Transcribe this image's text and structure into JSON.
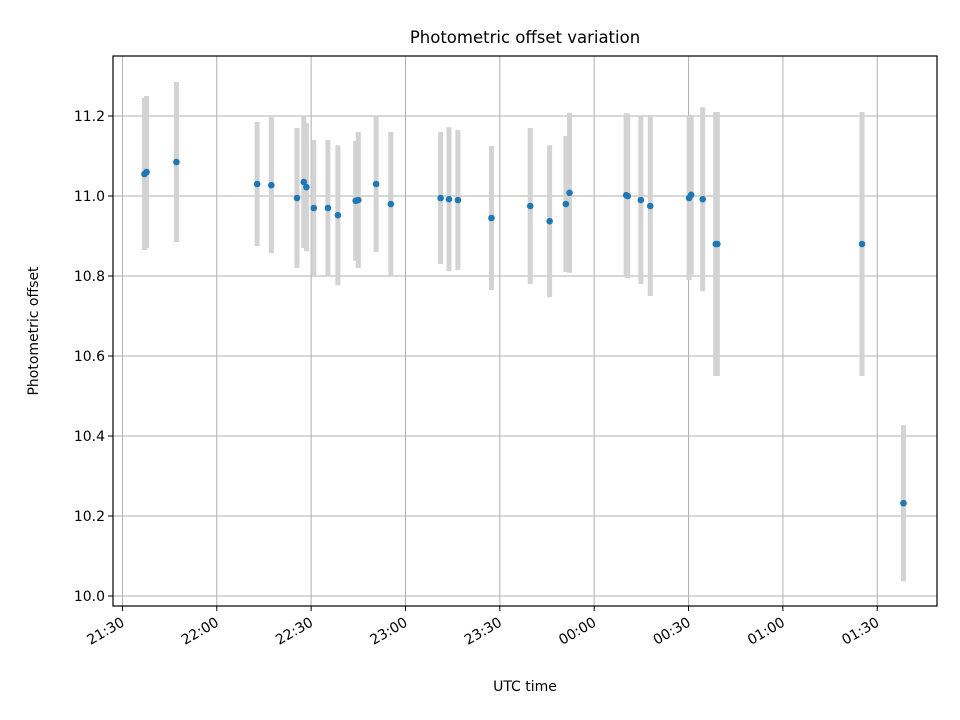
{
  "chart_data": {
    "type": "scatter",
    "title": "Photometric offset variation",
    "xlabel": "UTC time",
    "ylabel": "Photometric offset",
    "xlim": [
      "21:27",
      "01:49"
    ],
    "ylim": [
      9.975,
      11.35
    ],
    "x_ticks": [
      "21:30",
      "22:00",
      "22:30",
      "23:00",
      "23:30",
      "00:00",
      "00:30",
      "01:00",
      "01:30"
    ],
    "y_ticks": [
      "10.0",
      "10.2",
      "10.4",
      "10.6",
      "10.8",
      "11.0",
      "11.2"
    ],
    "grid": true,
    "point_color": "#1f77b4",
    "errorbar_color": "#d3d3d3",
    "points": [
      {
        "t": "21:37:00",
        "y": 11.055,
        "err": 0.19
      },
      {
        "t": "21:37:40",
        "y": 11.06,
        "err": 0.19
      },
      {
        "t": "21:47:10",
        "y": 11.085,
        "err": 0.2
      },
      {
        "t": "22:12:50",
        "y": 11.03,
        "err": 0.155
      },
      {
        "t": "22:17:20",
        "y": 11.027,
        "err": 0.17
      },
      {
        "t": "22:25:30",
        "y": 10.995,
        "err": 0.175
      },
      {
        "t": "22:27:40",
        "y": 11.035,
        "err": 0.165
      },
      {
        "t": "22:28:30",
        "y": 11.022,
        "err": 0.16
      },
      {
        "t": "22:30:50",
        "y": 10.97,
        "err": 0.17
      },
      {
        "t": "22:35:20",
        "y": 10.97,
        "err": 0.17
      },
      {
        "t": "22:38:30",
        "y": 10.952,
        "err": 0.175
      },
      {
        "t": "22:44:10",
        "y": 10.988,
        "err": 0.15
      },
      {
        "t": "22:45:00",
        "y": 10.99,
        "err": 0.17
      },
      {
        "t": "22:50:40",
        "y": 11.03,
        "err": 0.17
      },
      {
        "t": "22:55:20",
        "y": 10.98,
        "err": 0.18
      },
      {
        "t": "23:11:10",
        "y": 10.995,
        "err": 0.165
      },
      {
        "t": "23:13:50",
        "y": 10.992,
        "err": 0.18
      },
      {
        "t": "23:16:40",
        "y": 10.99,
        "err": 0.175
      },
      {
        "t": "23:27:20",
        "y": 10.945,
        "err": 0.18
      },
      {
        "t": "23:39:40",
        "y": 10.975,
        "err": 0.195
      },
      {
        "t": "23:45:50",
        "y": 10.937,
        "err": 0.19
      },
      {
        "t": "23:51:00",
        "y": 10.98,
        "err": 0.17
      },
      {
        "t": "23:52:10",
        "y": 11.008,
        "err": 0.2
      },
      {
        "t": "00:10:10",
        "y": 11.002,
        "err": 0.205
      },
      {
        "t": "00:10:40",
        "y": 11.0,
        "err": 0.205
      },
      {
        "t": "00:14:50",
        "y": 10.99,
        "err": 0.21
      },
      {
        "t": "00:17:50",
        "y": 10.975,
        "err": 0.225
      },
      {
        "t": "00:30:10",
        "y": 10.995,
        "err": 0.205
      },
      {
        "t": "00:30:50",
        "y": 11.003,
        "err": 0.2
      },
      {
        "t": "00:34:30",
        "y": 10.992,
        "err": 0.23
      },
      {
        "t": "00:38:40",
        "y": 10.88,
        "err": 0.33
      },
      {
        "t": "00:39:10",
        "y": 10.88,
        "err": 0.33
      },
      {
        "t": "01:25:10",
        "y": 10.88,
        "err": 0.33
      },
      {
        "t": "01:38:20",
        "y": 10.232,
        "err": 0.195
      }
    ]
  }
}
